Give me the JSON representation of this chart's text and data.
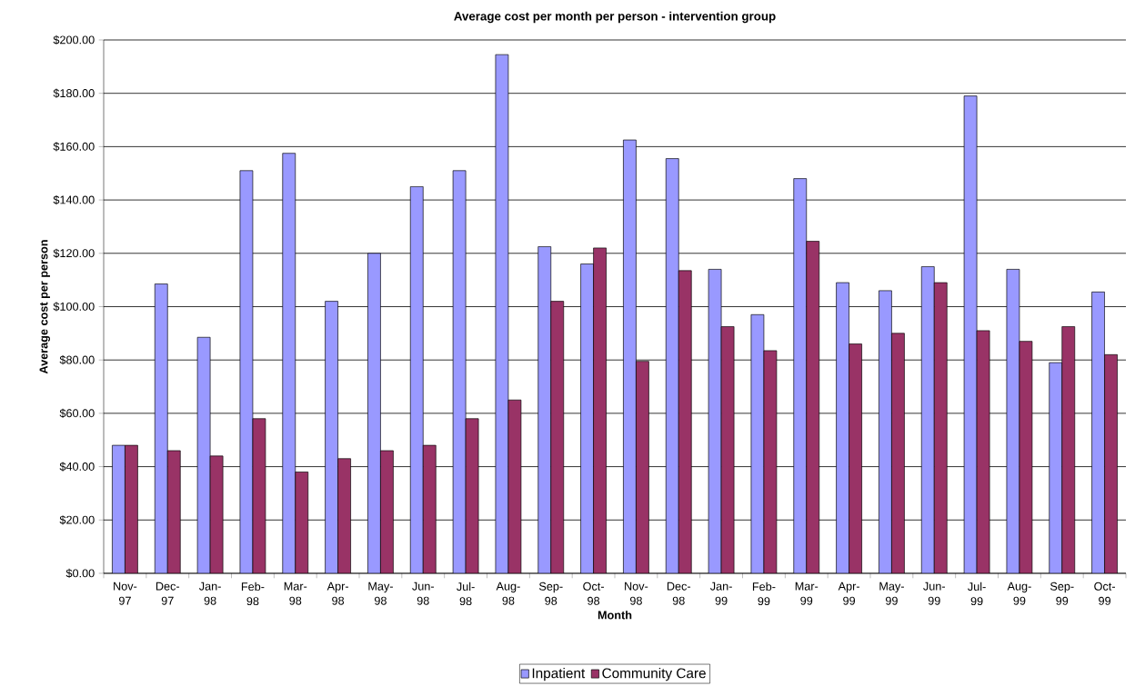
{
  "chart_data": {
    "type": "bar",
    "title": "Average cost per month per person - intervention group",
    "xlabel": "Month",
    "ylabel": "Average cost per person",
    "categories": [
      "Nov-97",
      "Dec-97",
      "Jan-98",
      "Feb-98",
      "Mar-98",
      "Apr-98",
      "May-98",
      "Jun-98",
      "Jul-98",
      "Aug-98",
      "Sep-98",
      "Oct-98",
      "Nov-98",
      "Dec-98",
      "Jan-99",
      "Feb-99",
      "Mar-99",
      "Apr-99",
      "May-99",
      "Jun-99",
      "Jul-99",
      "Aug-99",
      "Sep-99",
      "Oct-99"
    ],
    "series": [
      {
        "name": "Inpatient",
        "color": "#9999ff",
        "values": [
          48,
          108.5,
          88.5,
          151,
          157.5,
          102,
          120,
          145,
          151,
          194.5,
          122.5,
          116,
          162.5,
          155.5,
          114,
          97,
          148,
          109,
          106,
          115,
          179,
          114,
          79,
          105.5
        ]
      },
      {
        "name": "Community Care",
        "color": "#993366",
        "values": [
          48,
          46,
          44,
          58,
          38,
          43,
          46,
          48,
          58,
          65,
          102,
          122,
          79.5,
          113.5,
          92.5,
          83.5,
          124.5,
          86,
          90,
          109,
          91,
          87,
          92.5,
          82
        ]
      }
    ],
    "ylim": [
      0,
      200
    ],
    "yticks": [
      {
        "value": 0,
        "label": "$0.00"
      },
      {
        "value": 20,
        "label": "$20.00"
      },
      {
        "value": 40,
        "label": "$40.00"
      },
      {
        "value": 60,
        "label": "$60.00"
      },
      {
        "value": 80,
        "label": "$80.00"
      },
      {
        "value": 100,
        "label": "$100.00"
      },
      {
        "value": 120,
        "label": "$120.00"
      },
      {
        "value": 140,
        "label": "$140.00"
      },
      {
        "value": 160,
        "label": "$160.00"
      },
      {
        "value": 180,
        "label": "$180.00"
      },
      {
        "value": 200,
        "label": "$200.00"
      }
    ],
    "grid": "y",
    "legend": "bottom"
  }
}
